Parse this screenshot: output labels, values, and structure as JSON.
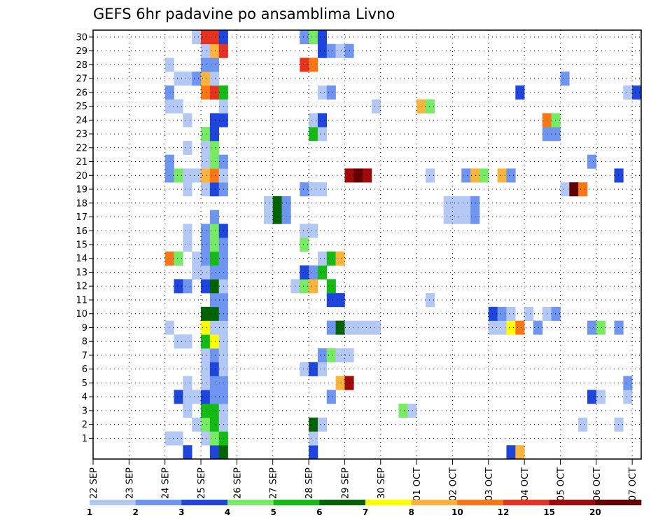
{
  "chart_data": {
    "type": "heatmap",
    "title": "GEFS 6hr padavine po ansamblima Livno",
    "xlabel": "",
    "ylabel": "",
    "x_start": "22 SEP 00z",
    "step_hours": 6,
    "n_steps": 61,
    "x_tick_labels": [
      "22 SEP",
      "23 SEP",
      "24 SEP",
      "25 SEP",
      "26 SEP",
      "27 SEP",
      "28 SEP",
      "29 SEP",
      "30 SEP",
      "01 OCT",
      "02 OCT",
      "03 OCT",
      "04 OCT",
      "05 OCT",
      "06 OCT",
      "07 OCT"
    ],
    "members": [
      0,
      1,
      2,
      3,
      4,
      5,
      6,
      7,
      8,
      9,
      10,
      11,
      12,
      13,
      14,
      15,
      16,
      17,
      18,
      19,
      20,
      21,
      22,
      23,
      24,
      25,
      26,
      27,
      28,
      29,
      30
    ],
    "y_tick_labels": [
      "1",
      "2",
      "3",
      "4",
      "5",
      "6",
      "7",
      "8",
      "9",
      "10",
      "11",
      "12",
      "13",
      "14",
      "15",
      "16",
      "17",
      "18",
      "19",
      "20",
      "21",
      "22",
      "23",
      "24",
      "25",
      "26",
      "27",
      "28",
      "29",
      "30"
    ],
    "grid": true,
    "legend": "bottom",
    "legend_levels": [
      "1",
      "2",
      "3",
      "4",
      "5",
      "6",
      "7",
      "8",
      "10",
      "12",
      "15",
      "20"
    ],
    "level_colors": [
      "#b4c8f5",
      "#6e96f0",
      "#1e46dc",
      "#78eb64",
      "#14bb14",
      "#046404",
      "#ffff00",
      "#fab43c",
      "#fa7814",
      "#e6321e",
      "#a00a0a",
      "#640000"
    ],
    "cells": [
      [
        0,
        10,
        3
      ],
      [
        0,
        13,
        3
      ],
      [
        0,
        14,
        6
      ],
      [
        0,
        24,
        3
      ],
      [
        0,
        46,
        3
      ],
      [
        0,
        47,
        8
      ],
      [
        1,
        8,
        1
      ],
      [
        1,
        9,
        1
      ],
      [
        1,
        12,
        1
      ],
      [
        1,
        13,
        4
      ],
      [
        1,
        14,
        5
      ],
      [
        1,
        24,
        1
      ],
      [
        2,
        11,
        1
      ],
      [
        2,
        12,
        4
      ],
      [
        2,
        13,
        5
      ],
      [
        2,
        14,
        1
      ],
      [
        2,
        24,
        6
      ],
      [
        2,
        25,
        1
      ],
      [
        2,
        54,
        1
      ],
      [
        2,
        58,
        1
      ],
      [
        3,
        10,
        1
      ],
      [
        3,
        12,
        5
      ],
      [
        3,
        13,
        5
      ],
      [
        3,
        14,
        1
      ],
      [
        3,
        34,
        4
      ],
      [
        3,
        35,
        1
      ],
      [
        4,
        9,
        3
      ],
      [
        4,
        10,
        1
      ],
      [
        4,
        11,
        1
      ],
      [
        4,
        12,
        3
      ],
      [
        4,
        13,
        2
      ],
      [
        4,
        14,
        2
      ],
      [
        4,
        26,
        2
      ],
      [
        4,
        55,
        3
      ],
      [
        4,
        56,
        1
      ],
      [
        4,
        59,
        1
      ],
      [
        5,
        10,
        1
      ],
      [
        5,
        12,
        1
      ],
      [
        5,
        13,
        2
      ],
      [
        5,
        14,
        2
      ],
      [
        5,
        27,
        8
      ],
      [
        5,
        28,
        15
      ],
      [
        5,
        59,
        2
      ],
      [
        6,
        12,
        1
      ],
      [
        6,
        13,
        3
      ],
      [
        6,
        14,
        1
      ],
      [
        6,
        23,
        1
      ],
      [
        6,
        24,
        3
      ],
      [
        6,
        25,
        1
      ],
      [
        7,
        12,
        1
      ],
      [
        7,
        13,
        2
      ],
      [
        7,
        14,
        1
      ],
      [
        7,
        25,
        2
      ],
      [
        7,
        26,
        4
      ],
      [
        7,
        27,
        1
      ],
      [
        7,
        28,
        1
      ],
      [
        8,
        9,
        1
      ],
      [
        8,
        10,
        1
      ],
      [
        8,
        12,
        5
      ],
      [
        8,
        13,
        7
      ],
      [
        8,
        14,
        1
      ],
      [
        9,
        8,
        1
      ],
      [
        9,
        12,
        7
      ],
      [
        9,
        13,
        1
      ],
      [
        9,
        14,
        1
      ],
      [
        9,
        26,
        2
      ],
      [
        9,
        27,
        6
      ],
      [
        9,
        28,
        1
      ],
      [
        9,
        29,
        1
      ],
      [
        9,
        30,
        1
      ],
      [
        9,
        31,
        1
      ],
      [
        9,
        44,
        1
      ],
      [
        9,
        45,
        1
      ],
      [
        9,
        46,
        7
      ],
      [
        9,
        47,
        10
      ],
      [
        9,
        49,
        2
      ],
      [
        9,
        55,
        2
      ],
      [
        9,
        56,
        4
      ],
      [
        9,
        58,
        2
      ],
      [
        10,
        12,
        6
      ],
      [
        10,
        13,
        6
      ],
      [
        10,
        14,
        2
      ],
      [
        10,
        44,
        3
      ],
      [
        10,
        45,
        2
      ],
      [
        10,
        46,
        1
      ],
      [
        10,
        48,
        1
      ],
      [
        10,
        50,
        1
      ],
      [
        10,
        51,
        2
      ],
      [
        11,
        13,
        2
      ],
      [
        11,
        14,
        2
      ],
      [
        11,
        26,
        3
      ],
      [
        11,
        27,
        3
      ],
      [
        11,
        37,
        1
      ],
      [
        12,
        9,
        3
      ],
      [
        12,
        10,
        2
      ],
      [
        12,
        12,
        3
      ],
      [
        12,
        13,
        6
      ],
      [
        12,
        14,
        1
      ],
      [
        12,
        22,
        1
      ],
      [
        12,
        23,
        4
      ],
      [
        12,
        24,
        8
      ],
      [
        12,
        26,
        5
      ],
      [
        13,
        11,
        1
      ],
      [
        13,
        12,
        1
      ],
      [
        13,
        13,
        2
      ],
      [
        13,
        14,
        2
      ],
      [
        13,
        23,
        3
      ],
      [
        13,
        24,
        2
      ],
      [
        13,
        25,
        5
      ],
      [
        14,
        8,
        10
      ],
      [
        14,
        9,
        4
      ],
      [
        14,
        11,
        1
      ],
      [
        14,
        12,
        2
      ],
      [
        14,
        13,
        5
      ],
      [
        14,
        14,
        2
      ],
      [
        14,
        25,
        1
      ],
      [
        14,
        26,
        5
      ],
      [
        14,
        27,
        8
      ],
      [
        15,
        10,
        1
      ],
      [
        15,
        12,
        2
      ],
      [
        15,
        13,
        4
      ],
      [
        15,
        14,
        2
      ],
      [
        15,
        23,
        4
      ],
      [
        16,
        10,
        1
      ],
      [
        16,
        12,
        2
      ],
      [
        16,
        13,
        4
      ],
      [
        16,
        14,
        3
      ],
      [
        16,
        23,
        1
      ],
      [
        16,
        24,
        1
      ],
      [
        17,
        13,
        2
      ],
      [
        17,
        19,
        1
      ],
      [
        17,
        20,
        6
      ],
      [
        17,
        21,
        2
      ],
      [
        17,
        39,
        1
      ],
      [
        17,
        40,
        1
      ],
      [
        17,
        41,
        1
      ],
      [
        17,
        42,
        2
      ],
      [
        18,
        19,
        1
      ],
      [
        18,
        20,
        6
      ],
      [
        18,
        21,
        2
      ],
      [
        18,
        39,
        1
      ],
      [
        18,
        40,
        1
      ],
      [
        18,
        41,
        1
      ],
      [
        18,
        42,
        2
      ],
      [
        19,
        10,
        1
      ],
      [
        19,
        12,
        1
      ],
      [
        19,
        13,
        3
      ],
      [
        19,
        14,
        2
      ],
      [
        19,
        23,
        2
      ],
      [
        19,
        24,
        1
      ],
      [
        19,
        25,
        1
      ],
      [
        19,
        52,
        1
      ],
      [
        19,
        53,
        20
      ],
      [
        19,
        54,
        10
      ],
      [
        20,
        8,
        2
      ],
      [
        20,
        9,
        4
      ],
      [
        20,
        10,
        1
      ],
      [
        20,
        11,
        1
      ],
      [
        20,
        12,
        8
      ],
      [
        20,
        13,
        10
      ],
      [
        20,
        14,
        1
      ],
      [
        20,
        28,
        15
      ],
      [
        20,
        29,
        20
      ],
      [
        20,
        30,
        15
      ],
      [
        20,
        37,
        1
      ],
      [
        20,
        41,
        2
      ],
      [
        20,
        42,
        8
      ],
      [
        20,
        43,
        4
      ],
      [
        20,
        45,
        8
      ],
      [
        20,
        46,
        2
      ],
      [
        20,
        58,
        3
      ],
      [
        21,
        8,
        2
      ],
      [
        21,
        12,
        1
      ],
      [
        21,
        13,
        4
      ],
      [
        21,
        14,
        2
      ],
      [
        21,
        55,
        2
      ],
      [
        22,
        10,
        1
      ],
      [
        22,
        12,
        1
      ],
      [
        22,
        13,
        4
      ],
      [
        23,
        12,
        4
      ],
      [
        23,
        13,
        3
      ],
      [
        23,
        24,
        5
      ],
      [
        23,
        25,
        1
      ],
      [
        23,
        50,
        2
      ],
      [
        23,
        51,
        2
      ],
      [
        24,
        10,
        1
      ],
      [
        24,
        13,
        3
      ],
      [
        24,
        14,
        3
      ],
      [
        24,
        24,
        1
      ],
      [
        24,
        25,
        3
      ],
      [
        24,
        50,
        10
      ],
      [
        24,
        51,
        4
      ],
      [
        25,
        8,
        1
      ],
      [
        25,
        9,
        1
      ],
      [
        25,
        14,
        1
      ],
      [
        25,
        31,
        1
      ],
      [
        25,
        36,
        8
      ],
      [
        25,
        37,
        4
      ],
      [
        26,
        8,
        2
      ],
      [
        26,
        12,
        10
      ],
      [
        26,
        13,
        12
      ],
      [
        26,
        14,
        5
      ],
      [
        26,
        25,
        1
      ],
      [
        26,
        26,
        2
      ],
      [
        26,
        47,
        3
      ],
      [
        26,
        59,
        1
      ],
      [
        26,
        60,
        3
      ],
      [
        27,
        9,
        1
      ],
      [
        27,
        10,
        1
      ],
      [
        27,
        11,
        2
      ],
      [
        27,
        12,
        8
      ],
      [
        27,
        13,
        1
      ],
      [
        27,
        52,
        2
      ],
      [
        28,
        8,
        1
      ],
      [
        28,
        12,
        2
      ],
      [
        28,
        13,
        2
      ],
      [
        28,
        23,
        12
      ],
      [
        28,
        24,
        10
      ],
      [
        29,
        12,
        1
      ],
      [
        29,
        13,
        8
      ],
      [
        29,
        14,
        12
      ],
      [
        29,
        25,
        3
      ],
      [
        29,
        26,
        2
      ],
      [
        29,
        27,
        1
      ],
      [
        29,
        28,
        2
      ],
      [
        30,
        11,
        1
      ],
      [
        30,
        12,
        12
      ],
      [
        30,
        13,
        12
      ],
      [
        30,
        14,
        3
      ],
      [
        30,
        23,
        2
      ],
      [
        30,
        24,
        4
      ],
      [
        30,
        25,
        3
      ]
    ]
  }
}
